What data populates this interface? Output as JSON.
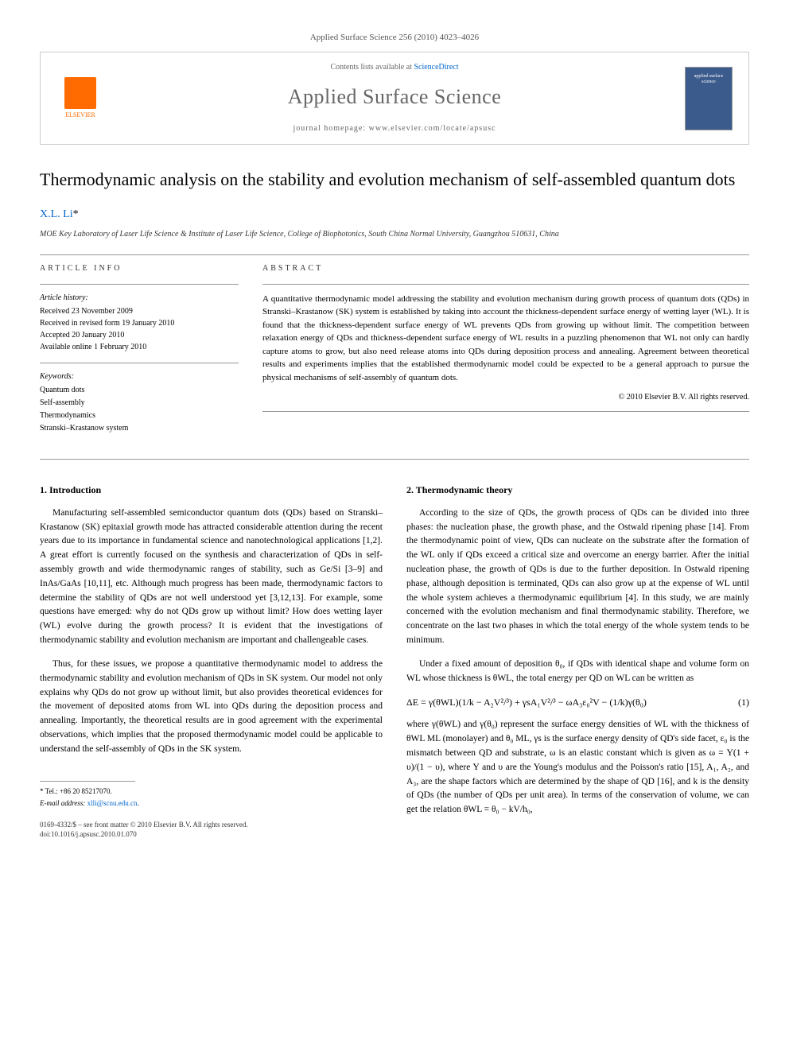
{
  "journal_header": "Applied Surface Science 256 (2010) 4023–4026",
  "header": {
    "elsevier_label": "ELSEVIER",
    "contents_prefix": "Contents lists available at ",
    "contents_link": "ScienceDirect",
    "journal_name": "Applied Surface Science",
    "homepage_prefix": "journal homepage: ",
    "homepage_url": "www.elsevier.com/locate/apsusc",
    "cover_text": "applied surface science"
  },
  "article": {
    "title": "Thermodynamic analysis on the stability and evolution mechanism of self-assembled quantum dots",
    "author": "X.L. Li",
    "author_marker": "*",
    "affiliation": "MOE Key Laboratory of Laser Life Science & Institute of Laser Life Science, College of Biophotonics, South China Normal University, Guangzhou 510631, China"
  },
  "article_info": {
    "heading": "ARTICLE INFO",
    "history_label": "Article history:",
    "received": "Received 23 November 2009",
    "revised": "Received in revised form 19 January 2010",
    "accepted": "Accepted 20 January 2010",
    "online": "Available online 1 February 2010",
    "keywords_label": "Keywords:",
    "keywords": [
      "Quantum dots",
      "Self-assembly",
      "Thermodynamics",
      "Stranski–Krastanow system"
    ]
  },
  "abstract": {
    "heading": "ABSTRACT",
    "text": "A quantitative thermodynamic model addressing the stability and evolution mechanism during growth process of quantum dots (QDs) in Stranski–Krastanow (SK) system is established by taking into account the thickness-dependent surface energy of wetting layer (WL). It is found that the thickness-dependent surface energy of WL prevents QDs from growing up without limit. The competition between relaxation energy of QDs and thickness-dependent surface energy of WL results in a puzzling phenomenon that WL not only can hardly capture atoms to grow, but also need release atoms into QDs during deposition process and annealing. Agreement between theoretical results and experiments implies that the established thermodynamic model could be expected to be a general approach to pursue the physical mechanisms of self-assembly of quantum dots.",
    "copyright": "© 2010 Elsevier B.V. All rights reserved."
  },
  "section1": {
    "heading": "1. Introduction",
    "p1": "Manufacturing self-assembled semiconductor quantum dots (QDs) based on Stranski–Krastanow (SK) epitaxial growth mode has attracted considerable attention during the recent years due to its importance in fundamental science and nanotechnological applications [1,2]. A great effort is currently focused on the synthesis and characterization of QDs in self-assembly growth and wide thermodynamic ranges of stability, such as Ge/Si [3–9] and InAs/GaAs [10,11], etc. Although much progress has been made, thermodynamic factors to determine the stability of QDs are not well understood yet [3,12,13]. For example, some questions have emerged: why do not QDs grow up without limit? How does wetting layer (WL) evolve during the growth process? It is evident that the investigations of thermodynamic stability and evolution mechanism are important and challengeable cases.",
    "p2": "Thus, for these issues, we propose a quantitative thermodynamic model to address the thermodynamic stability and evolution mechanism of QDs in SK system. Our model not only explains why QDs do not grow up without limit, but also provides theoretical evidences for the movement of deposited atoms from WL into QDs during the deposition process and annealing. Importantly, the theoretical results are in good agreement with the experimental observations, which implies that the proposed thermodynamic model could be applicable to understand the self-assembly of QDs in the SK system."
  },
  "section2": {
    "heading": "2. Thermodynamic theory",
    "p1": "According to the size of QDs, the growth process of QDs can be divided into three phases: the nucleation phase, the growth phase, and the Ostwald ripening phase [14]. From the thermodynamic point of view, QDs can nucleate on the substrate after the formation of the WL only if QDs exceed a critical size and overcome an energy barrier. After the initial nucleation phase, the growth of QDs is due to the further deposition. In Ostwald ripening phase, although deposition is terminated, QDs can also grow up at the expense of WL until the whole system achieves a thermodynamic equilibrium [4]. In this study, we are mainly concerned with the evolution mechanism and final thermodynamic stability. Therefore, we concentrate on the last two phases in which the total energy of the whole system tends to be minimum.",
    "p2": "Under a fixed amount of deposition θ₀, if QDs with identical shape and volume form on WL whose thickness is θWL, the total energy per QD on WL can be written as",
    "eq1": "ΔE = γ(θWL)(1/k − A₂V²/³) + γsA₁V²/³ − ωA₃ε₀²V − (1/k)γ(θ₀)",
    "eq1_num": "(1)",
    "p3": "where γ(θWL) and γ(θ₀) represent the surface energy densities of WL with the thickness of θWL ML (monolayer) and θ₀ ML, γs is the surface energy density of QD's side facet, ε₀ is the mismatch between QD and substrate, ω is an elastic constant which is given as ω = Y(1 + υ)/(1 − υ), where Y and υ are the Young's modulus and the Poisson's ratio [15], A₁, A₂, and A₃, are the shape factors which are determined by the shape of QD [16], and k is the density of QDs (the number of QDs per unit area). In terms of the conservation of volume, we can get the relation θWL = θ₀ − kV/h₀,"
  },
  "footnotes": {
    "tel": "* Tel.: +86 20 85217070.",
    "email_label": "E-mail address: ",
    "email": "xlli@scnu.edu.cn",
    "copyright_line1": "0169-4332/$ – see front matter © 2010 Elsevier B.V. All rights reserved.",
    "doi": "doi:10.1016/j.apsusc.2010.01.070"
  },
  "colors": {
    "link": "#0066cc",
    "orange": "#ff6b00",
    "cover_bg": "#3a5b8c",
    "text": "#000000",
    "muted": "#666666",
    "border": "#cccccc"
  }
}
